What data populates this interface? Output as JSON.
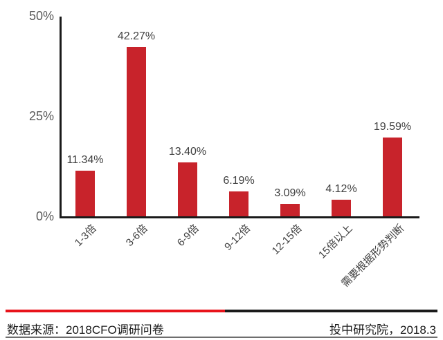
{
  "chart_data": {
    "type": "bar",
    "title": "",
    "categories": [
      "1-3倍",
      "3-6倍",
      "6-9倍",
      "9-12倍",
      "12-15倍",
      "15倍以上",
      "需要根据形势判断"
    ],
    "values": [
      11.34,
      42.27,
      13.4,
      6.19,
      3.09,
      4.12,
      19.59
    ],
    "value_labels": [
      "11.34%",
      "42.27%",
      "13.40%",
      "6.19%",
      "3.09%",
      "4.12%",
      "19.59%"
    ],
    "y_ticks": [
      {
        "label": "50%",
        "value": 50
      },
      {
        "label": "25%",
        "value": 25
      },
      {
        "label": "0%",
        "value": 0
      }
    ],
    "xlabel": "",
    "ylabel": "",
    "ylim": [
      0,
      50
    ],
    "grid": false,
    "legend_position": "none",
    "bar_color": "#c8232b",
    "value_label_color": "#404040",
    "tick_label_color": "#595959",
    "axis_color": "#1a1a1a"
  },
  "footer": {
    "source": "数据来源：2018CFO调研问卷",
    "credit": "投中研究院，2018.3",
    "divider_red_color": "#e8131b",
    "divider_dark_color": "#1a1a1a"
  }
}
